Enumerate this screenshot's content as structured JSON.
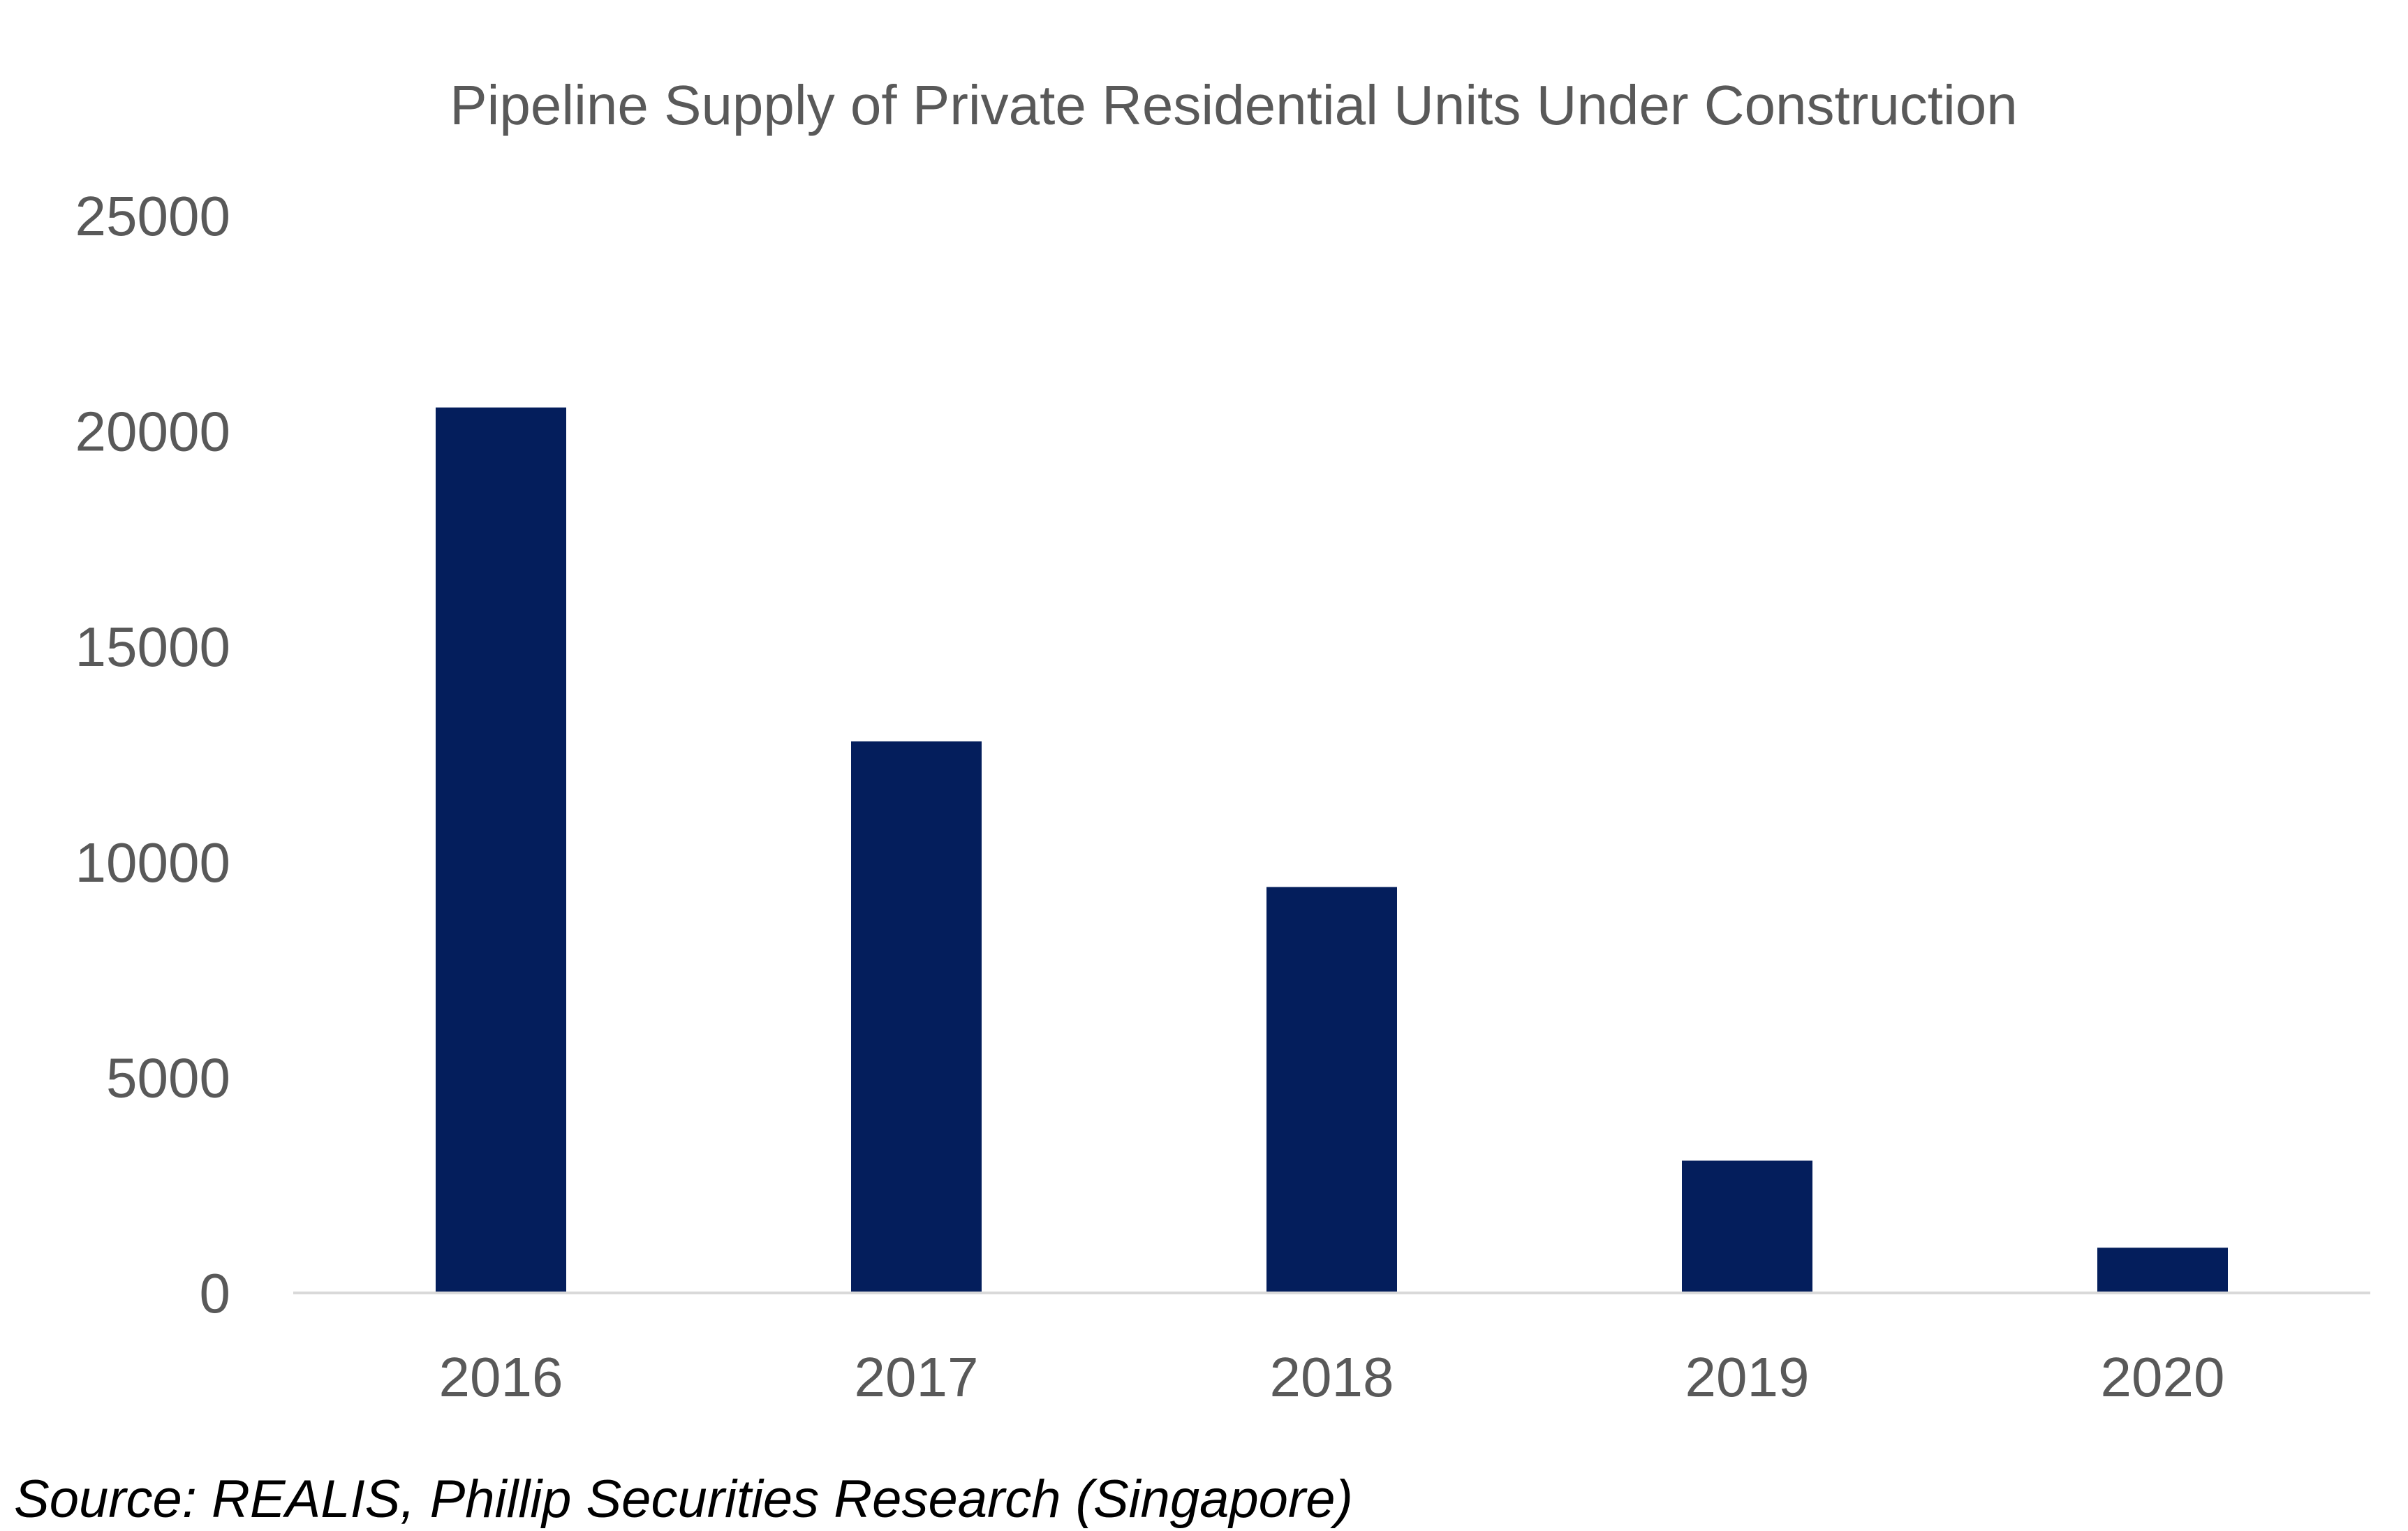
{
  "chart_data": {
    "type": "bar",
    "title": "Pipeline Supply of Private Residential Units Under Construction",
    "categories": [
      "2016",
      "2017",
      "2018",
      "2019",
      "2020"
    ],
    "values": [
      20550,
      12800,
      9420,
      3070,
      1050
    ],
    "xlabel": "",
    "ylabel": "",
    "ylim": [
      0,
      25000
    ],
    "yticks": [
      "0",
      "5000",
      "10000",
      "15000",
      "20000",
      "25000"
    ],
    "grid": false,
    "legend": "none",
    "bar_color": "#041E5C",
    "axis_color": "#D9D9D9",
    "text_color": "#595959"
  },
  "source_note": "Source: REALIS, Phillip Securities Research (Singapore)"
}
